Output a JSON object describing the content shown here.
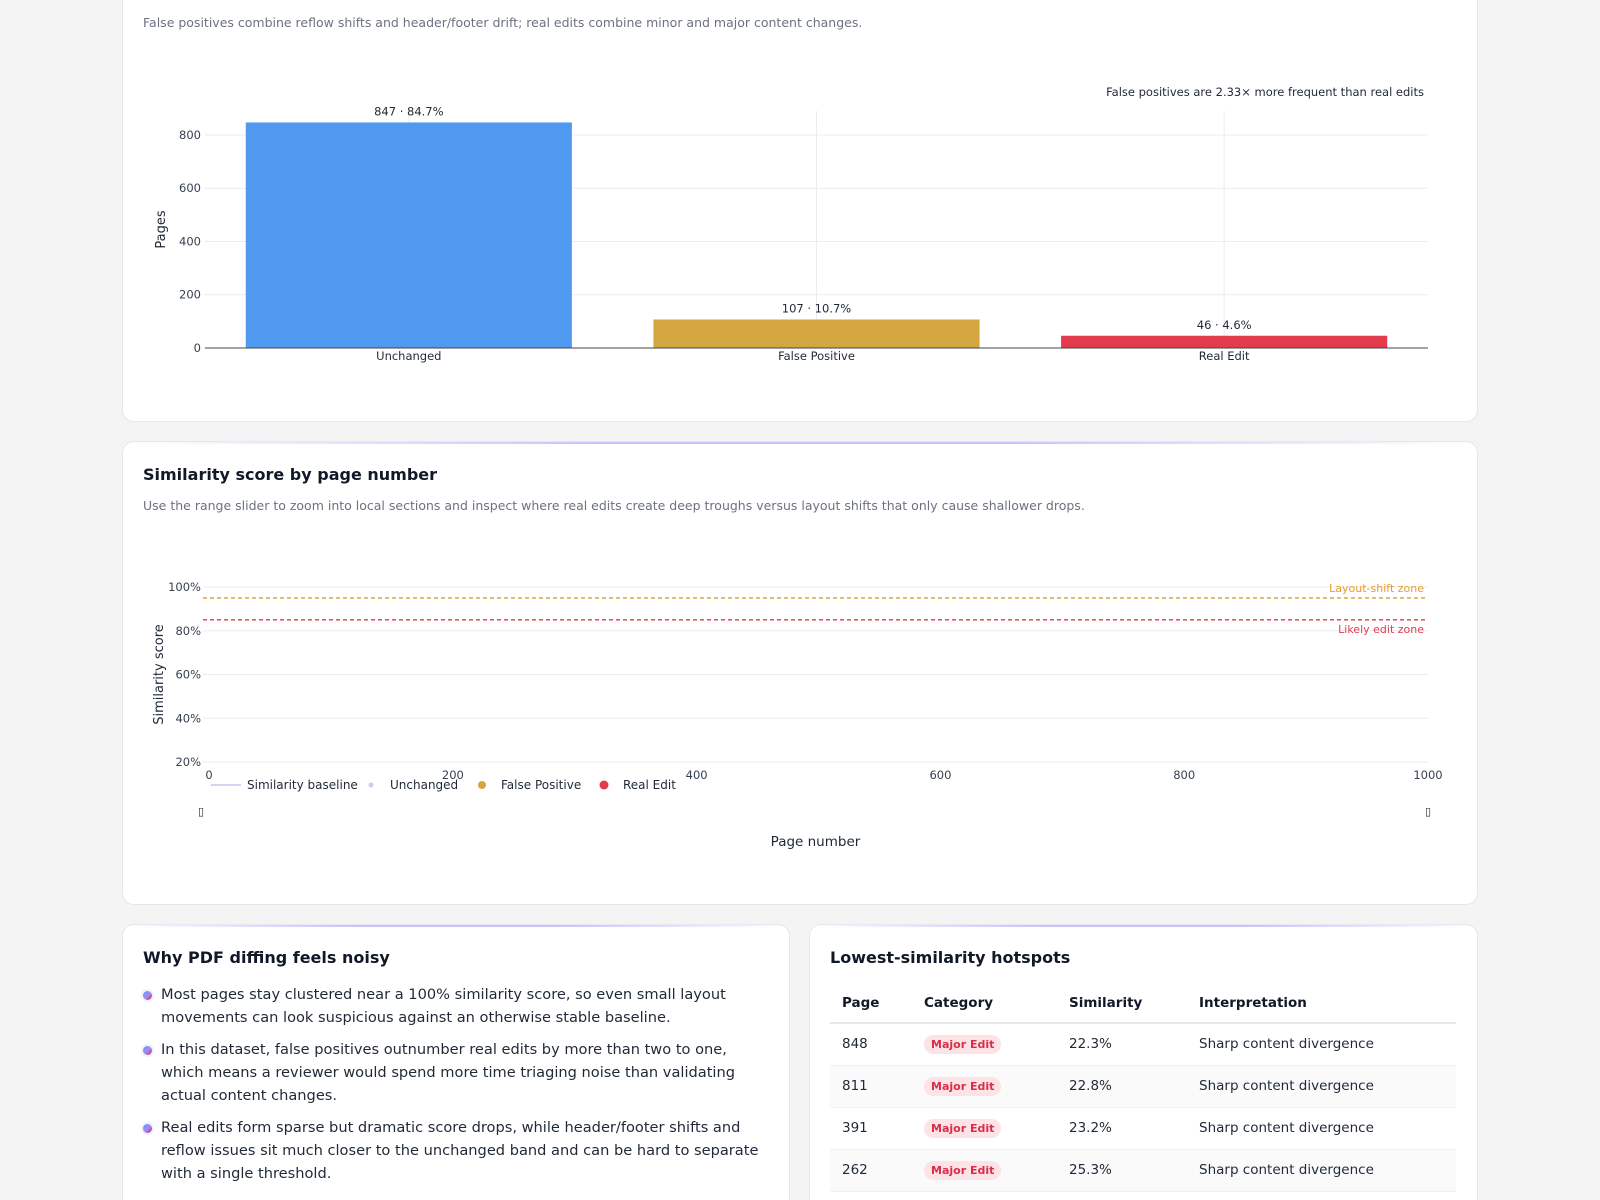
{
  "colors": {
    "unchanged": "#4f9af0",
    "false_positive": "#d4a640",
    "real_edit": "#e23b4e",
    "layout_shift_line": "#e89a2b",
    "likely_edit_line": "#e23b4e"
  },
  "summary_card": {
    "subtitle": "False positives combine reflow shifts and header/footer drift; real edits combine minor and major content changes."
  },
  "similarity_card": {
    "title": "Similarity score by page number",
    "subtitle": "Use the range slider to zoom into local sections and inspect where real edits create deep troughs versus layout shifts that only cause shallower drops.",
    "slider_left_glyph": "▯",
    "slider_right_glyph": "▯"
  },
  "noisy_card": {
    "title": "Why PDF diffing feels noisy",
    "points": [
      "Most pages stay clustered near a 100% similarity score, so even small layout movements can look suspicious against an otherwise stable baseline.",
      "In this dataset, false positives outnumber real edits by more than two to one, which means a reviewer would spend more time triaging noise than validating actual content changes.",
      "Real edits form sparse but dramatic score drops, while header/footer shifts and reflow issues sit much closer to the unchanged band and can be hard to separate with a single threshold."
    ]
  },
  "hotspots_card": {
    "title": "Lowest-similarity hotspots",
    "columns": [
      "Page",
      "Category",
      "Similarity",
      "Interpretation"
    ],
    "rows": [
      {
        "page": "848",
        "category": "Major Edit",
        "similarity": "22.3%",
        "interpretation": "Sharp content divergence"
      },
      {
        "page": "811",
        "category": "Major Edit",
        "similarity": "22.8%",
        "interpretation": "Sharp content divergence"
      },
      {
        "page": "391",
        "category": "Major Edit",
        "similarity": "23.2%",
        "interpretation": "Sharp content divergence"
      },
      {
        "page": "262",
        "category": "Major Edit",
        "similarity": "25.3%",
        "interpretation": "Sharp content divergence"
      }
    ]
  },
  "chart_data": [
    {
      "type": "bar",
      "annotation": "False positives are 2.33× more frequent than real edits",
      "categories": [
        "Unchanged",
        "False Positive",
        "Real Edit"
      ],
      "values": [
        847,
        107,
        46
      ],
      "data_labels": [
        "847 · 84.7%",
        "107 · 10.7%",
        "46 · 4.6%"
      ],
      "ylabel": "Pages",
      "yticks": [
        "0",
        "200",
        "400",
        "600",
        "800"
      ],
      "ylim": [
        0,
        890
      ],
      "grid": true
    },
    {
      "type": "scatter",
      "xlabel": "Page number",
      "ylabel": "Similarity score",
      "xticks": [
        "0",
        "200",
        "400",
        "600",
        "800",
        "1000"
      ],
      "xlim": [
        -5,
        1000
      ],
      "yticks": [
        "20%",
        "40%",
        "60%",
        "80%",
        "100%"
      ],
      "ylim": [
        20,
        100
      ],
      "reference_lines": [
        {
          "label": "Layout-shift zone",
          "y": 95
        },
        {
          "label": "Likely edit zone",
          "y": 85
        }
      ],
      "legend": [
        "Similarity baseline",
        "Unchanged",
        "False Positive",
        "Real Edit"
      ],
      "legend_position": "bottom-left",
      "series": []
    }
  ]
}
